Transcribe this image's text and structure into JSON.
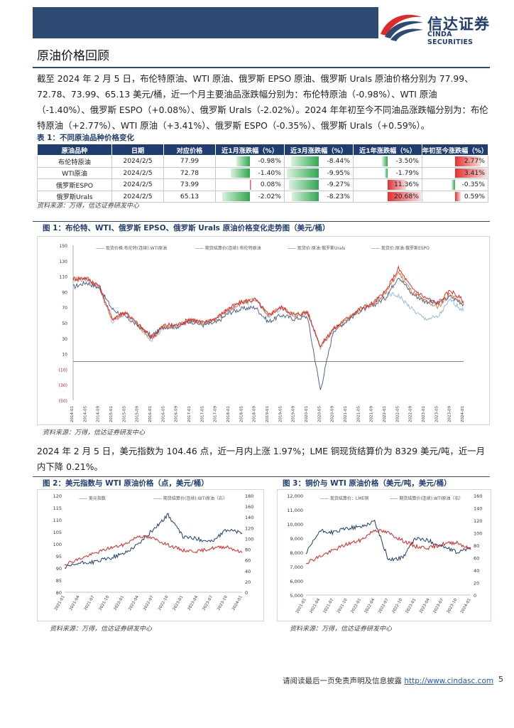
{
  "brand": {
    "name_cn": "信达证券",
    "name_en": "CINDA SECURITIES"
  },
  "section_title": "原油价格回顾",
  "paragraph1": "截至 2024 年 2 月 5 日，布伦特原油、WTI 原油、俄罗斯 EPSO 原油、俄罗斯 Urals 原油价格分别为 77.99、72.78、73.99、65.13 美元/桶，近一个月主要油品涨跌幅分别为：布伦特原油（-0.98%）、WTI 原油（-1.40%）、俄罗斯 ESPO（+0.08%）、俄罗斯 Urals（-2.02%）。2024 年年初至今不同油品涨跌幅分别为：布伦特原油（+2.77%）、WTI 原油（+3.41%）、俄罗斯 ESPO（-0.35%）、俄罗斯 Urals（+0.59%）。",
  "table1": {
    "caption": "表 1：不同原油品种价格变化",
    "headers": [
      "原油品种",
      "日期",
      "对应价格",
      "近1月涨跌幅（%）",
      "近3月涨跌幅（%）",
      "近1年涨跌幅（%）",
      "年初至今涨跌幅（%）"
    ],
    "rows": [
      [
        "布伦特原油",
        "2024/2/5",
        "77.99",
        "-0.98%",
        "-8.44%",
        "-3.50%",
        "2.77%"
      ],
      [
        "WTI原油",
        "2024/2/5",
        "72.78",
        "-1.40%",
        "-9.95%",
        "-1.79%",
        "3.41%"
      ],
      [
        "俄罗斯ESPO",
        "2024/2/5",
        "73.99",
        "0.08%",
        "-9.27%",
        "11.36%",
        "-0.35%"
      ],
      [
        "俄罗斯Urals",
        "2024/2/5",
        "65.13",
        "-2.02%",
        "-8.23%",
        "20.68%",
        "0.59%"
      ]
    ],
    "bar_values": [
      [
        -0.98,
        -8.44,
        -3.5,
        2.77
      ],
      [
        -1.4,
        -9.95,
        -1.79,
        3.41
      ],
      [
        0.08,
        -9.27,
        11.36,
        -0.35
      ],
      [
        -2.02,
        -8.23,
        20.68,
        0.59
      ]
    ],
    "source": "资料来源：万得，信达证券研发中心"
  },
  "figure1": {
    "caption": "图 1：布伦特、WTI、俄罗斯 EPSO、俄罗斯 Urals 原油价格变化走势图（美元/桶）",
    "legend": [
      "—— 现货价格:布伦特(连续):WTI原油",
      "—— 期货结算价(连续):布伦特原油",
      "—— 现货价:原油:俄罗斯Urals",
      "—— 现货价:原油:俄罗斯ESPO"
    ],
    "source": "资料来源：万得，信达证券研发中心",
    "chart_data": {
      "type": "line",
      "y_ticks": [
        "150",
        "130",
        "110",
        "90",
        "70",
        "50",
        "30",
        "10",
        "(10)",
        "(30)",
        "(50)"
      ],
      "ylim": [
        -50,
        150
      ],
      "x_ticks": [
        "2014-01",
        "2014-05",
        "2014-09",
        "2015-01",
        "2015-05",
        "2015-09",
        "2016-01",
        "2016-05",
        "2016-09",
        "2017-01",
        "2017-05",
        "2017-09",
        "2018-01",
        "2018-05",
        "2018-09",
        "2019-01",
        "2019-05",
        "2019-09",
        "2020-01",
        "2020-05",
        "2020-09",
        "2021-01",
        "2021-05",
        "2021-09",
        "2022-01",
        "2022-05",
        "2022-09",
        "2023-01",
        "2023-05",
        "2023-09",
        "2024-01"
      ],
      "series": [
        {
          "name": "现货价格:布伦特(连续):WTI原油",
          "color": "#3a5a8c",
          "values": [
            96,
            102,
            95,
            68,
            58,
            46,
            33,
            45,
            45,
            52,
            47,
            50,
            63,
            68,
            70,
            51,
            60,
            55,
            58,
            -37,
            40,
            52,
            65,
            72,
            82,
            110,
            88,
            78,
            75,
            84,
            74
          ]
        },
        {
          "name": "期货结算价(连续):布伦特原油",
          "color": "#e02020",
          "values": [
            107,
            108,
            98,
            55,
            64,
            48,
            31,
            47,
            47,
            55,
            50,
            56,
            69,
            77,
            80,
            60,
            70,
            60,
            64,
            20,
            42,
            55,
            68,
            75,
            90,
            120,
            95,
            83,
            75,
            92,
            78
          ]
        },
        {
          "name": "现货价:原油:俄罗斯Urals",
          "color": "#8fb4e8",
          "values": [
            105,
            106,
            96,
            50,
            62,
            46,
            28,
            43,
            45,
            53,
            48,
            55,
            67,
            75,
            79,
            59,
            69,
            59,
            63,
            18,
            41,
            53,
            66,
            72,
            88,
            85,
            68,
            55,
            57,
            80,
            65
          ]
        },
        {
          "name": "现货价:原油:俄罗斯ESPO",
          "color": "#e07a30",
          "values": [
            106,
            107,
            97,
            54,
            63,
            47,
            30,
            45,
            46,
            54,
            49,
            56,
            68,
            76,
            80,
            60,
            70,
            60,
            64,
            19,
            42,
            54,
            67,
            74,
            89,
            115,
            90,
            78,
            70,
            88,
            74
          ]
        }
      ]
    }
  },
  "paragraph2": "2024 年 2 月 5 日，美元指数为 104.46 点，近一月内上涨 1.97%；LME 铜现货结算价为 8329 美元/吨，近一月内下降 0.21%。",
  "figure2": {
    "caption": "图 2：美元指数与 WTI 原油价格（点，美元/桶）",
    "legend": [
      "—— 美元指数",
      "—— 期货结算价(连续):WTI原油（右）"
    ],
    "source": "资料来源：万得，信达证券研发中心",
    "chart_data": {
      "type": "line",
      "y_left_ticks": [
        "120",
        "115",
        "110",
        "105",
        "100",
        "95",
        "90",
        "85",
        "80"
      ],
      "y_right_ticks": [
        "180",
        "160",
        "140",
        "120",
        "100",
        "80",
        "60",
        "40",
        "20",
        "0"
      ],
      "ylim_left": [
        80,
        120
      ],
      "ylim_right": [
        0,
        180
      ],
      "x_ticks": [
        "2021-01",
        "2021-04",
        "2021-07",
        "2021-10",
        "2022-01",
        "2022-04",
        "2022-07",
        "2022-10",
        "2023-01",
        "2023-04",
        "2023-07",
        "2023-10",
        "2024-01"
      ],
      "series": [
        {
          "name": "美元指数",
          "axis": "left",
          "color": "#1f3d6e",
          "values": [
            90,
            92,
            92.5,
            94,
            96,
            100,
            106,
            112,
            103,
            102,
            101,
            106,
            104.5
          ]
        },
        {
          "name": "期货结算价(连续):WTI原油（右）",
          "axis": "right",
          "color": "#e02020",
          "values": [
            52,
            62,
            72,
            82,
            88,
            105,
            100,
            88,
            78,
            76,
            82,
            85,
            73
          ]
        }
      ]
    }
  },
  "figure3": {
    "caption": "图 3：铜价与 WTI 原油价格（美元/吨，美元/桶）",
    "legend": [
      "—— 现货结算价：LME铜",
      "—— 期货结算价(连续):WTI原油（右）"
    ],
    "source": "资料来源：万得，信达证券研发中心",
    "chart_data": {
      "type": "line",
      "y_left_ticks": [
        "12,000",
        "11,000",
        "10,000",
        "9,000",
        "8,000",
        "7,000",
        "6,000",
        "5,000"
      ],
      "y_right_ticks": [
        "160",
        "140",
        "120",
        "100",
        "80",
        "60",
        "40",
        "20",
        "0"
      ],
      "ylim_left": [
        5000,
        12000
      ],
      "ylim_right": [
        0,
        160
      ],
      "x_ticks": [
        "2021-01",
        "2021-04",
        "2021-07",
        "2021-10",
        "2022-01",
        "2022-04",
        "2022-07",
        "2022-10",
        "2023-01",
        "2023-04",
        "2023-07",
        "2023-10",
        "2024-01"
      ],
      "series": [
        {
          "name": "现货结算价：LME铜",
          "axis": "left",
          "color": "#1f3d6e",
          "values": [
            7900,
            9500,
            9400,
            9700,
            9800,
            10200,
            7500,
            7600,
            9000,
            8800,
            8400,
            8000,
            8350
          ]
        },
        {
          "name": "期货结算价(连续):WTI原油（右）",
          "axis": "right",
          "color": "#e02020",
          "values": [
            52,
            62,
            72,
            82,
            88,
            105,
            100,
            88,
            78,
            76,
            82,
            85,
            73
          ]
        }
      ]
    }
  },
  "footer": {
    "text": "请阅读最后一页免责声明及信息披露",
    "link": "http://www.cindasc.com",
    "page": "5"
  }
}
